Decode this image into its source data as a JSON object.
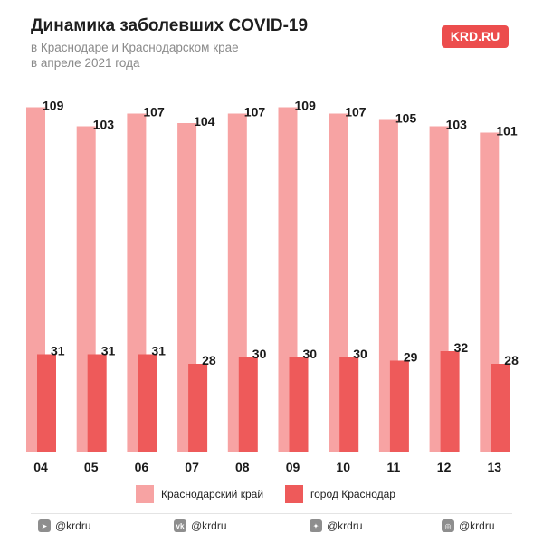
{
  "header": {
    "title": "Динамика заболевших COVID-19",
    "subtitle_line1": "в Краснодаре и Краснодарском крае",
    "subtitle_line2": "в апреле 2021 года"
  },
  "logo": {
    "text": "KRD.RU",
    "color": "#ec4d4d"
  },
  "chart_data": {
    "type": "bar",
    "categories": [
      "04",
      "05",
      "06",
      "07",
      "08",
      "09",
      "10",
      "11",
      "12",
      "13"
    ],
    "series": [
      {
        "name": "Краснодарский край",
        "color": "#f7a3a3",
        "values": [
          109,
          103,
          107,
          104,
          107,
          109,
          107,
          105,
          103,
          101
        ]
      },
      {
        "name": "город Краснодар",
        "color": "#ee5a5a",
        "values": [
          31,
          31,
          31,
          28,
          30,
          30,
          30,
          29,
          32,
          28
        ]
      }
    ],
    "legend_position": "bottom",
    "grid": false
  },
  "socials": [
    {
      "icon": "telegram-icon",
      "glyph": "➤",
      "label": "@krdru"
    },
    {
      "icon": "vk-icon",
      "glyph": "vk",
      "label": "@krdru"
    },
    {
      "icon": "twitter-icon",
      "glyph": "✦",
      "label": "@krdru"
    },
    {
      "icon": "instagram-icon",
      "glyph": "◎",
      "label": "@krdru"
    }
  ]
}
